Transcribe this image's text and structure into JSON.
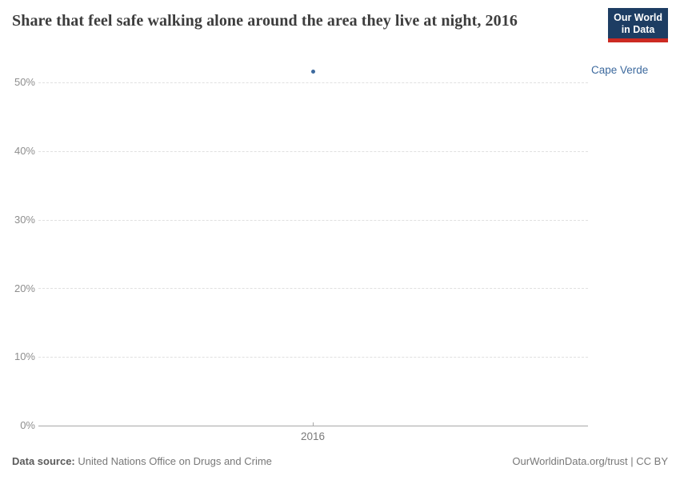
{
  "header": {
    "title": "Share that feel safe walking alone around the area they live at night, 2016",
    "logo": {
      "line1": "Our World",
      "line2": "in Data",
      "bg_color": "#1d3d63",
      "accent_color": "#cc2a22"
    }
  },
  "chart_data": {
    "type": "scatter",
    "title": "Share that feel safe walking alone around the area they live at night, 2016",
    "series": [
      {
        "name": "Cape Verde",
        "color": "#3d6a9e",
        "points": [
          {
            "x": 2016,
            "y": 51.6
          }
        ]
      }
    ],
    "x_tick_labels": [
      "2016"
    ],
    "y_tick_labels": [
      "0%",
      "10%",
      "20%",
      "30%",
      "40%",
      "50%"
    ],
    "ylim": [
      0,
      52
    ],
    "xlabel": "",
    "ylabel": "",
    "grid": "horizontal-dashed",
    "legend_position": "entity-label-right"
  },
  "footer": {
    "source_label": "Data source:",
    "source_value": "United Nations Office on Drugs and Crime",
    "credit": "OurWorldinData.org/trust | CC BY"
  }
}
